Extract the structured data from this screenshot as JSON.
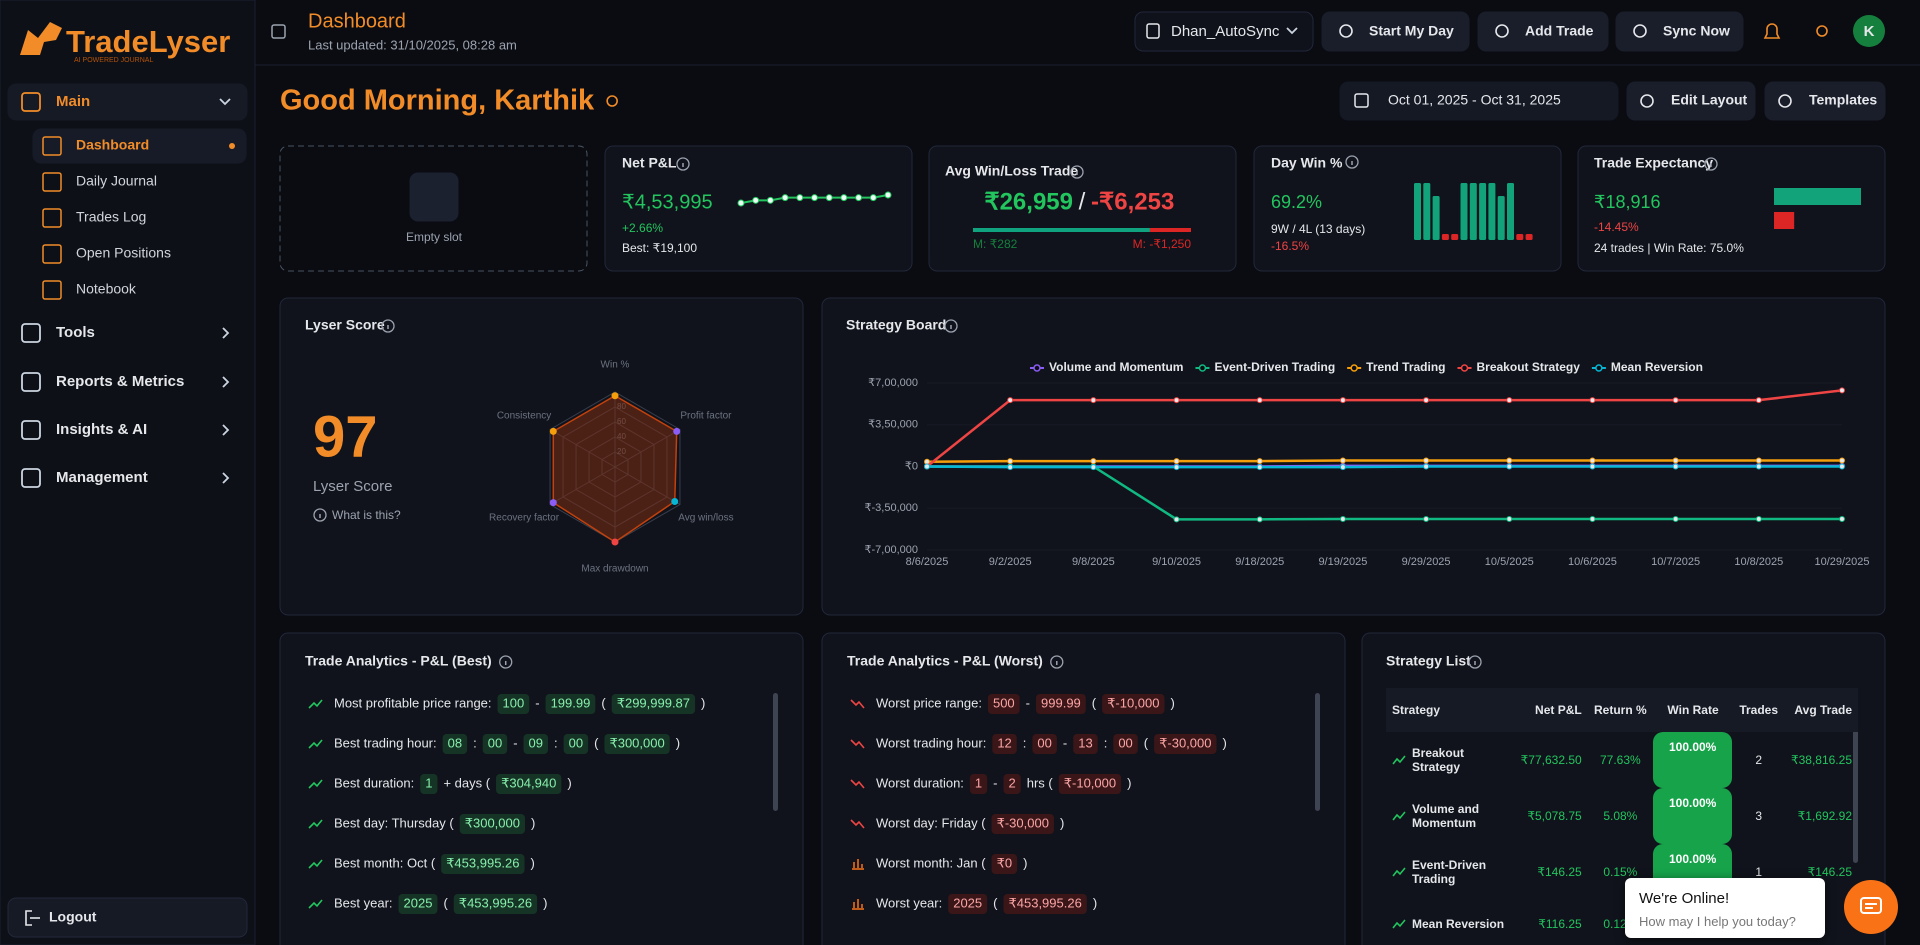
{
  "brand": {
    "name": "TradeLyser",
    "tagline": "AI POWERED JOURNAL"
  },
  "sidebar": {
    "groups": [
      {
        "label": "Main",
        "items": [
          "Dashboard",
          "Daily Journal",
          "Trades Log",
          "Open Positions",
          "Notebook"
        ]
      },
      {
        "label": "Tools"
      },
      {
        "label": "Reports & Metrics"
      },
      {
        "label": "Insights & AI"
      },
      {
        "label": "Management"
      }
    ],
    "logout": "Logout"
  },
  "header": {
    "title": "Dashboard",
    "subtitle": "Last updated: 31/10/2025, 08:28 am",
    "account": "Dhan_AutoSync",
    "actions": [
      "Start My Day",
      "Add Trade",
      "Sync Now"
    ],
    "avatar": "K"
  },
  "greeting": "Good Morning, Karthik",
  "toolbar": {
    "date_range": "Oct 01, 2025 - Oct 31, 2025",
    "buttons": [
      "Edit Layout",
      "Templates"
    ]
  },
  "empty_slot": "Empty slot",
  "net_pnl": {
    "title": "Net P&L",
    "value": "₹4,53,995",
    "change": "+2.66%",
    "best": "Best: ₹19,100",
    "sparkline": [
      0,
      1,
      1,
      2,
      2,
      2,
      2,
      2,
      2,
      2,
      3
    ]
  },
  "avg_win_loss": {
    "title": "Avg Win/Loss Trade",
    "win": {
      "value": 26959,
      "label": "₹26,959"
    },
    "separator": "/",
    "loss": {
      "value": -6253,
      "label": "-₹6,253"
    },
    "median_win": "M: ₹282",
    "median_loss": "M: -₹1,250"
  },
  "day_win": {
    "title": "Day Win %",
    "value": "69.2%",
    "record": "9W / 4L (13 days)",
    "change": "-16.5%",
    "days": [
      57,
      57,
      44,
      -6,
      -6,
      57,
      57,
      57,
      57,
      44,
      57,
      -6,
      -6
    ]
  },
  "expectancy": {
    "title": "Trade Expectancy",
    "value": "₹18,916",
    "change": "-14.45%",
    "summary": "24 trades | Win Rate: 75.0%",
    "bars": [
      {
        "value": 26959,
        "color": "#12a37a"
      },
      {
        "value": -6253,
        "color": "#dc2626"
      }
    ]
  },
  "lyser_score": {
    "title": "Lyser Score",
    "score": 97,
    "label": "Lyser Score",
    "help": "What is this?",
    "radar": {
      "axes": [
        "Win %",
        "Profit factor",
        "Avg win/loss",
        "Max drawdown",
        "Recovery factor",
        "Consistency"
      ],
      "values": [
        95,
        95,
        92,
        100,
        95,
        95
      ],
      "colors": [
        "#f59e0b",
        "#8b5cf6",
        "#06b6d4",
        "#ef4444",
        "#8b5cf6",
        "#f59e0b"
      ],
      "lim": [
        0,
        100
      ],
      "ticks": [
        20,
        40,
        60,
        80
      ]
    }
  },
  "strategy_board": {
    "title": "Strategy Board",
    "categories": [
      "8/6/2025",
      "9/2/2025",
      "9/8/2025",
      "9/10/2025",
      "9/18/2025",
      "9/19/2025",
      "9/29/2025",
      "10/5/2025",
      "10/6/2025",
      "10/7/2025",
      "10/8/2025",
      "10/29/2025"
    ],
    "series": [
      {
        "name": "Volume and Momentum",
        "color": "#8b5cf6",
        "values": [
          0,
          0,
          0,
          0,
          0,
          5000,
          5000,
          5000,
          5000,
          5000,
          5000,
          5000
        ]
      },
      {
        "name": "Event-Driven Trading",
        "color": "#10b981",
        "values": [
          0,
          0,
          0,
          -443000,
          -443000,
          -440000,
          -440000,
          -440000,
          -440000,
          -440000,
          -440000,
          -440000
        ]
      },
      {
        "name": "Trend Trading",
        "color": "#f59e0b",
        "values": [
          40000,
          45000,
          45000,
          45000,
          45000,
          50000,
          50000,
          50000,
          50000,
          50000,
          50000,
          50000
        ]
      },
      {
        "name": "Breakout Strategy",
        "color": "#ef4444",
        "values": [
          0,
          556000,
          556000,
          556000,
          556000,
          556000,
          556000,
          556000,
          556000,
          556000,
          556000,
          638000
        ]
      },
      {
        "name": "Mean Reversion",
        "color": "#06b6d4",
        "values": [
          0,
          -5000,
          -5000,
          -5000,
          -5000,
          -5000,
          0,
          0,
          0,
          0,
          0,
          0
        ]
      }
    ],
    "ylim": [
      -700000,
      700000
    ],
    "yticks": [
      {
        "value": 700000,
        "label": "₹7,00,000"
      },
      {
        "value": 350000,
        "label": "₹3,50,000"
      },
      {
        "value": 0,
        "label": "₹0"
      },
      {
        "value": -350000,
        "label": "₹-3,50,000"
      },
      {
        "value": -700000,
        "label": "₹-7,00,000"
      }
    ]
  },
  "best": {
    "title": "Trade Analytics - P&L (Best)",
    "rows": [
      [
        "Most profitable price range:",
        {
          "chip": "100"
        },
        "-",
        {
          "chip": "199.99"
        },
        "(",
        {
          "chip": "₹299,999.87"
        },
        ")"
      ],
      [
        "Best trading hour:",
        {
          "chip": "08"
        },
        ":",
        {
          "chip": "00"
        },
        "-",
        {
          "chip": "09"
        },
        ":",
        {
          "chip": "00"
        },
        "(",
        {
          "chip": "₹300,000"
        },
        ")"
      ],
      [
        "Best duration:",
        {
          "chip": "1"
        },
        "+ days (",
        {
          "chip": "₹304,940"
        },
        ")"
      ],
      [
        "Best day: Thursday (",
        {
          "chip": "₹300,000"
        },
        ")"
      ],
      [
        "Best month: Oct (",
        {
          "chip": "₹453,995.26"
        },
        ")"
      ],
      [
        "Best year:",
        {
          "chip": "2025"
        },
        "(",
        {
          "chip": "₹453,995.26"
        },
        ")"
      ]
    ]
  },
  "worst": {
    "title": "Trade Analytics - P&L (Worst)",
    "rows": [
      [
        "Worst price range:",
        {
          "chip": "500"
        },
        "-",
        {
          "chip": "999.99"
        },
        "(",
        {
          "chip": "₹-10,000"
        },
        ")"
      ],
      [
        "Worst trading hour:",
        {
          "chip": "12"
        },
        ":",
        {
          "chip": "00"
        },
        "-",
        {
          "chip": "13"
        },
        ":",
        {
          "chip": "00"
        },
        "(",
        {
          "chip": "₹-30,000"
        },
        ")"
      ],
      [
        "Worst duration:",
        {
          "chip": "1"
        },
        "-",
        {
          "chip": "2"
        },
        "hrs (",
        {
          "chip": "₹-10,000"
        },
        ")"
      ],
      [
        "Worst day: Friday (",
        {
          "chip": "₹-30,000"
        },
        ")"
      ],
      [
        "Worst month: Jan (",
        {
          "chip": "₹0"
        },
        ")"
      ],
      [
        "Worst year:",
        {
          "chip": "2025"
        },
        "(",
        {
          "chip": "₹453,995.26"
        },
        ")"
      ]
    ]
  },
  "strategy_list": {
    "title": "Strategy List",
    "columns": [
      "Strategy",
      "Net P&L",
      "Return %",
      "Win Rate",
      "Trades",
      "Avg Trade"
    ],
    "rows": [
      [
        "Breakout Strategy",
        "₹77,632.50",
        "77.63%",
        "100.00%",
        "2",
        "₹38,816.25"
      ],
      [
        "Volume and Momentum",
        "₹5,078.75",
        "5.08%",
        "100.00%",
        "3",
        "₹1,692.92"
      ],
      [
        "Event-Driven Trading",
        "₹146.25",
        "0.15%",
        "100.00%",
        "1",
        "₹146.25"
      ],
      [
        "Mean Reversion",
        "₹116.25",
        "0.12%"
      ]
    ]
  },
  "chat": {
    "title": "We're Online!",
    "prompt": "How may I help you today?"
  }
}
